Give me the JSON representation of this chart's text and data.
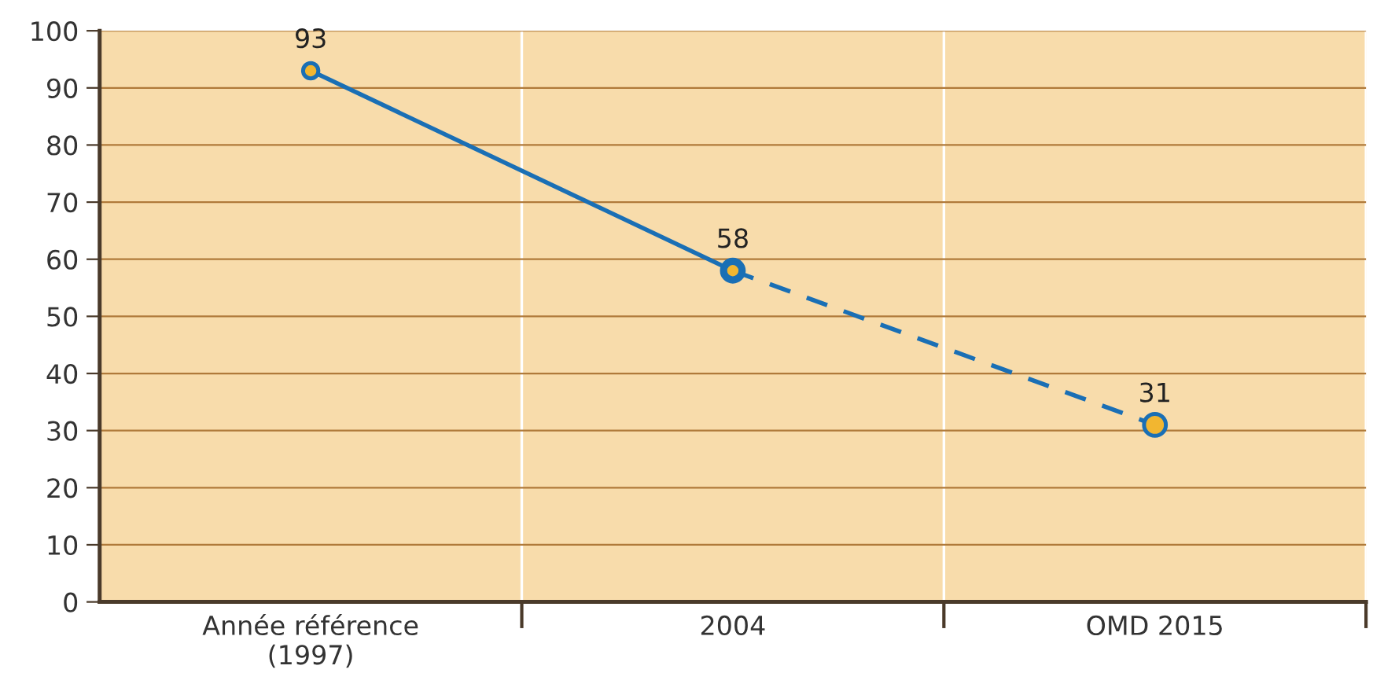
{
  "chart_data": {
    "type": "line",
    "categories": [
      "Année référence\n(1997)",
      "2004",
      "OMD 2015"
    ],
    "series": [
      {
        "color": "#1a6fb5",
        "values": [
          93,
          58,
          null
        ],
        "line_style": "solid",
        "value_labels": [
          "93",
          "58",
          null
        ]
      },
      {
        "color": "#1a6fb5",
        "values": [
          null,
          58,
          31
        ],
        "line_style": "dashed",
        "value_labels": [
          null,
          null,
          "31"
        ]
      }
    ],
    "ylim": [
      0,
      100
    ],
    "yticks": [
      0,
      10,
      20,
      30,
      40,
      50,
      60,
      70,
      80,
      90,
      100
    ],
    "grid": true,
    "marker": "circle",
    "legend": false
  }
}
